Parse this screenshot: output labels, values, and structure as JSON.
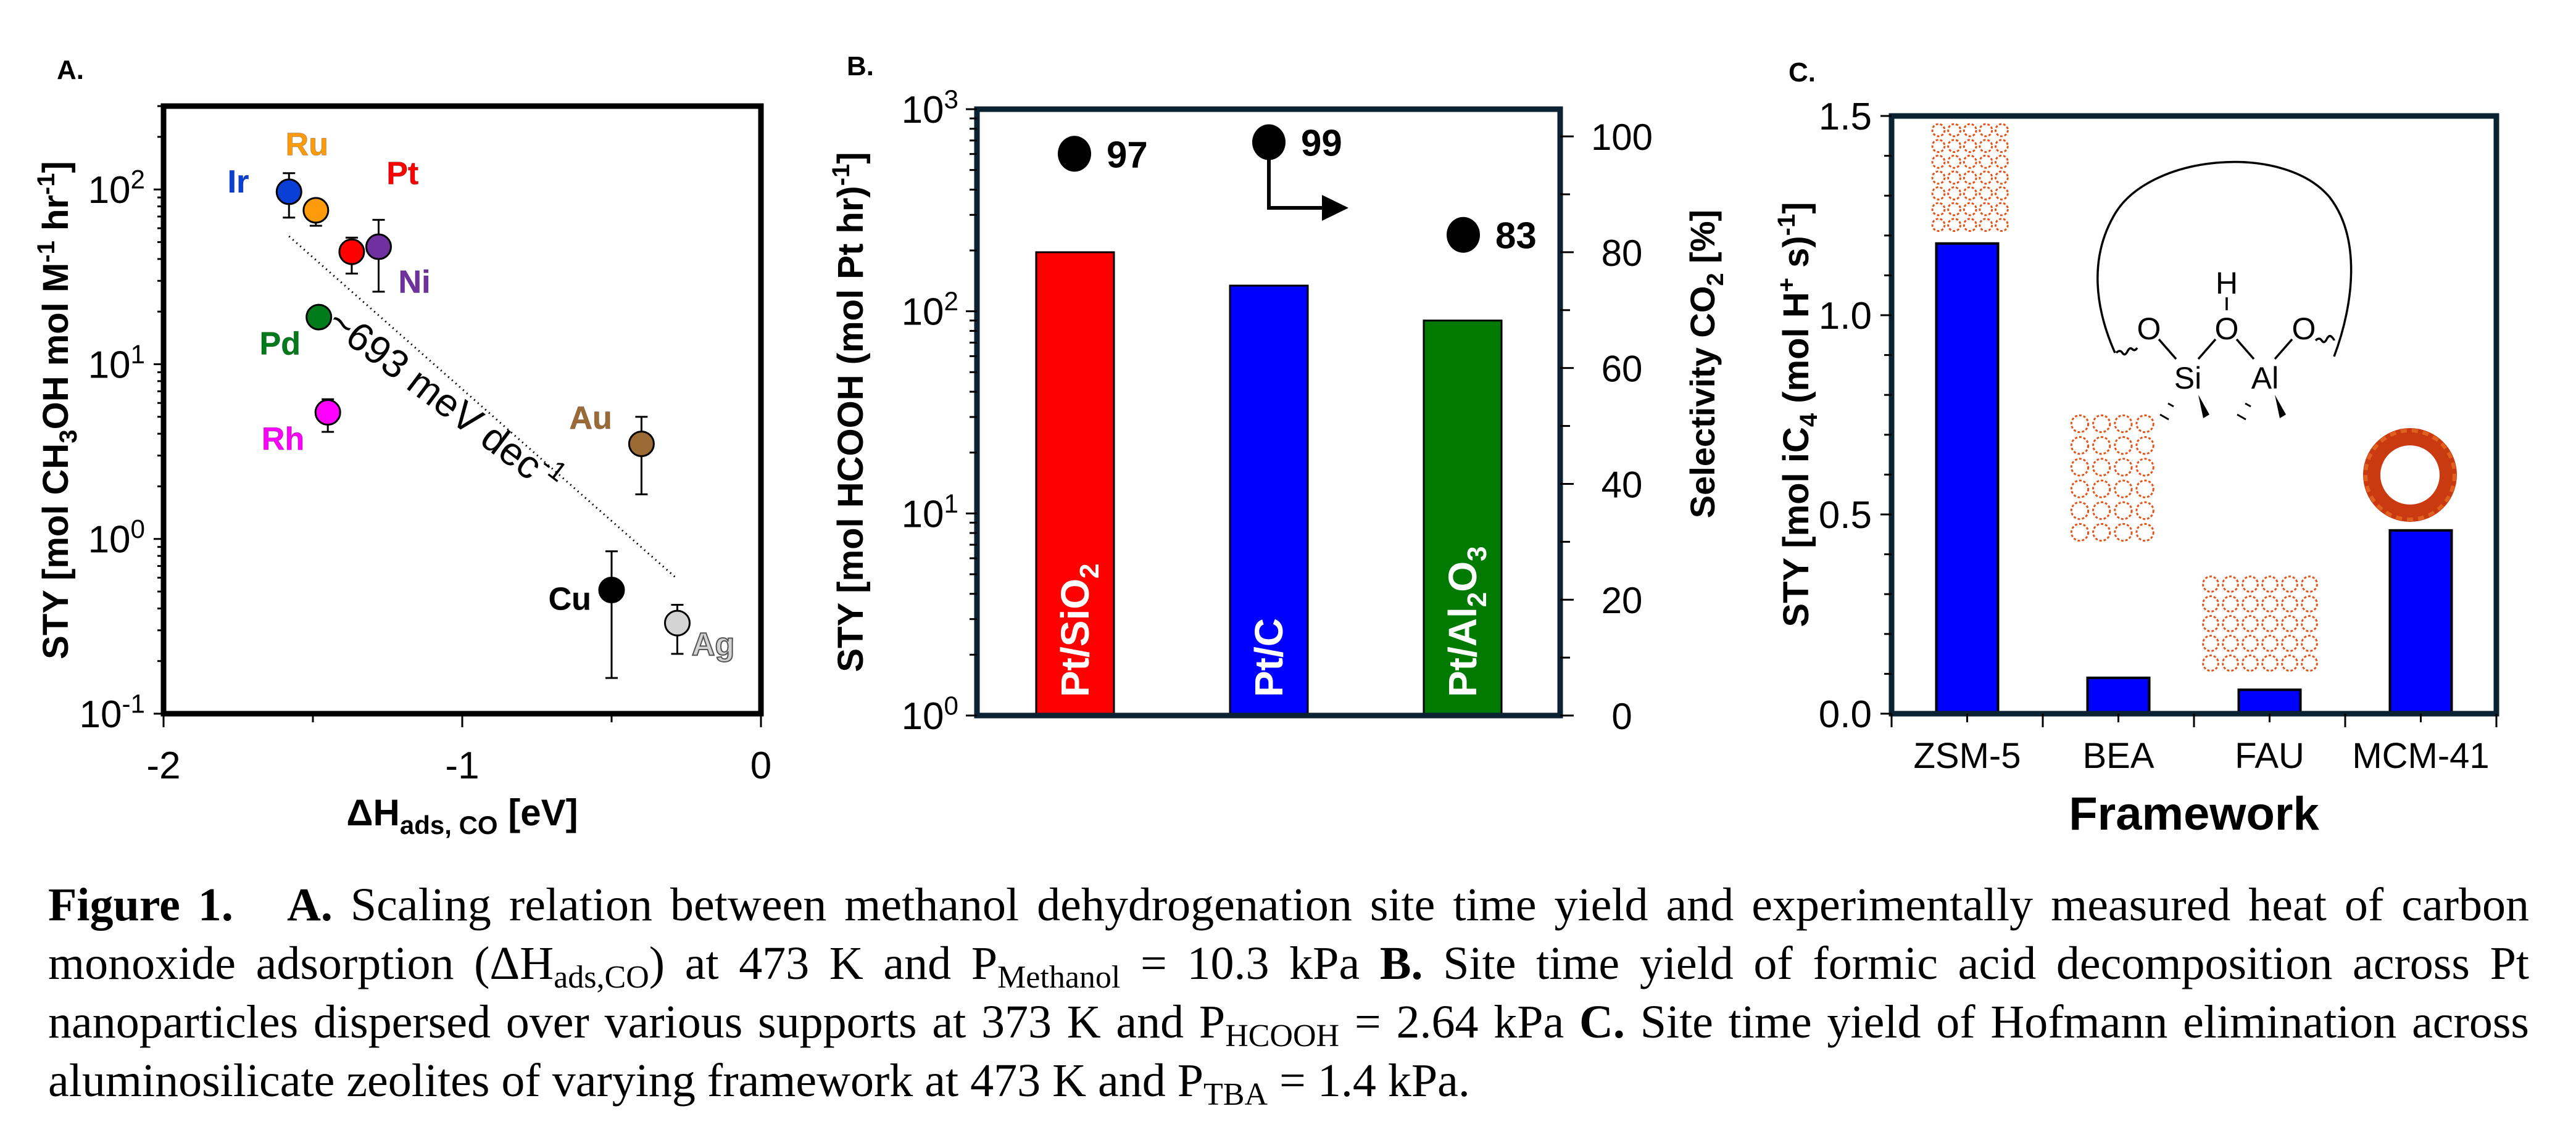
{
  "chart_data": [
    {
      "panel": "A.",
      "type": "scatter",
      "xlabel": "ΔH",
      "xlabel_sub": "ads, CO",
      "xlabel_unit": " [eV]",
      "ylabel_parts": [
        "STY [mol CH",
        "3",
        "OH mol M",
        "-1",
        " hr",
        "-1",
        "]"
      ],
      "xlim": [
        -2,
        0
      ],
      "ylim": [
        0.1,
        300
      ],
      "yscale": "log",
      "xticks": [
        {
          "value": -2,
          "label": "-2"
        },
        {
          "value": -1,
          "label": "-1"
        },
        {
          "value": 0,
          "label": "0"
        }
      ],
      "xminor": [
        -1.5,
        -0.5
      ],
      "yticks": [
        {
          "value": 100,
          "base": "10",
          "exp": "2"
        },
        {
          "value": 10,
          "base": "10",
          "exp": "1"
        },
        {
          "value": 1,
          "base": "10",
          "exp": "0"
        },
        {
          "value": 0.1,
          "base": "10",
          "exp": "-1"
        }
      ],
      "points": [
        {
          "label": "Ir",
          "x": -1.58,
          "y": 97,
          "err_low": 69,
          "err_high": 124,
          "color": "#0a3fd6",
          "label_dx": -0.17,
          "label_dy": 0.06
        },
        {
          "label": "Ru",
          "x": -1.49,
          "y": 76,
          "err_low": 62,
          "err_high": 76,
          "color": "#ff9a0a",
          "label_dx": -0.03,
          "label_dy": 0.38
        },
        {
          "label": "Pt",
          "x": -1.37,
          "y": 44,
          "err_low": 33,
          "err_high": 53,
          "color": "#ff0000",
          "label_dx": 0.17,
          "label_dy": 0.45
        },
        {
          "label": "Ni",
          "x": -1.28,
          "y": 47,
          "err_low": 26,
          "err_high": 67,
          "color": "#7030a0",
          "label_dx": 0.12,
          "label_dy": -0.2
        },
        {
          "label": "Pd",
          "x": -1.48,
          "y": 18.6,
          "err_low": 18.6,
          "err_high": 18.6,
          "color": "#007a1a",
          "label_dx": -0.13,
          "label_dy": -0.15
        },
        {
          "label": "Rh",
          "x": -1.45,
          "y": 5.3,
          "err_low": 4.1,
          "err_high": 6.3,
          "color": "#ff00ff",
          "label_dx": -0.15,
          "label_dy": -0.15
        },
        {
          "label": "Au",
          "x": -0.4,
          "y": 3.5,
          "err_low": 1.8,
          "err_high": 5.0,
          "color": "#9b6a35",
          "label_dx": -0.17,
          "label_dy": 0.15
        },
        {
          "label": "Cu",
          "x": -0.5,
          "y": 0.51,
          "err_low": 0.16,
          "err_high": 0.85,
          "color": "#000000",
          "label_dx": -0.14,
          "label_dy": -0.05
        },
        {
          "label": "Ag",
          "x": -0.28,
          "y": 0.33,
          "err_low": 0.22,
          "err_high": 0.42,
          "color": "#d4d4d4",
          "label_dx": 0.12,
          "label_dy": -0.12
        }
      ],
      "trendline": {
        "x": [
          -1.58,
          -0.28
        ],
        "y": [
          54,
          0.59
        ],
        "style": "dotted"
      },
      "annotation": {
        "text": "~693 meV dec",
        "sup": "-1",
        "x": -1.15,
        "y": 3.2,
        "rotation_deg": 37
      }
    },
    {
      "panel": "B.",
      "type": "bar",
      "categories": [
        "Pt/SiO2",
        "Pt/C",
        "Pt/Al2O3"
      ],
      "category_labels": [
        {
          "parts": [
            "Pt/SiO",
            "2",
            ""
          ]
        },
        {
          "parts": [
            "Pt/C",
            "",
            ""
          ]
        },
        {
          "parts": [
            "Pt/Al",
            "2",
            "O",
            "3"
          ]
        }
      ],
      "values": [
        196,
        134,
        90
      ],
      "bar_colors": [
        "#ff0000",
        "#0000ff",
        "#007a00"
      ],
      "yscale": "log",
      "ylim": [
        1,
        1000
      ],
      "ylabel_parts": [
        "STY [mol HCOOH (mol Pt hr)",
        "-1",
        "]"
      ],
      "yticks": [
        {
          "value": 1,
          "base": "10",
          "exp": "0"
        },
        {
          "value": 10,
          "base": "10",
          "exp": "1"
        },
        {
          "value": 100,
          "base": "10",
          "exp": "2"
        },
        {
          "value": 1000,
          "base": "10",
          "exp": "3"
        }
      ],
      "secondary_axis": {
        "label_parts": [
          "Selectivity CO",
          "2",
          " [%]"
        ],
        "ylim": [
          0,
          104.7
        ],
        "ticks": [
          0,
          20,
          40,
          60,
          80,
          100
        ],
        "minor": [
          10,
          30,
          50,
          70,
          90
        ]
      },
      "selectivity": [
        {
          "value": 97,
          "label": "97"
        },
        {
          "value": 99,
          "label": "99"
        },
        {
          "value": 83,
          "label": "83"
        }
      ],
      "arrow_note": "right-axis"
    },
    {
      "panel": "C.",
      "type": "bar",
      "categories": [
        "ZSM-5",
        "BEA",
        "FAU",
        "MCM-41"
      ],
      "values": [
        1.18,
        0.09,
        0.06,
        0.46
      ],
      "bar_color": "#0000ff",
      "ylim": [
        0,
        1.5
      ],
      "yticks": [
        {
          "value": 0.0,
          "label": "0.0"
        },
        {
          "value": 0.5,
          "label": "0.5"
        },
        {
          "value": 1.0,
          "label": "1.0"
        },
        {
          "value": 1.5,
          "label": "1.5"
        }
      ],
      "yminor": [
        0.1,
        0.2,
        0.3,
        0.4,
        0.6,
        0.7,
        0.8,
        0.9,
        1.1,
        1.2,
        1.3,
        1.4
      ],
      "xlabel": "Framework",
      "ylabel_parts": [
        "STY [mol iC",
        "4",
        " (mol H",
        "+",
        " s)",
        "-1",
        "]"
      ],
      "inset": {
        "atoms": [
          "H",
          "O",
          "O",
          "O",
          "Si",
          "Al"
        ],
        "description": "Brønsted acid site: Si–O(H)–Al bridging hydroxyl within zeolite pore"
      },
      "structure_images": [
        "ZSM-5 framework",
        "BEA framework",
        "FAU framework",
        "MCM-41 framework"
      ]
    }
  ],
  "caption": {
    "fig_label": "Figure 1.",
    "a_label": "A.",
    "a_text_1": " Scaling relation between methanol dehydrogenation site time yield and experimentally measured heat of carbon monoxide adsorption (ΔH",
    "a_sub_1": "ads,CO",
    "a_text_2": ") at 473 K and P",
    "a_sub_2": "Methanol",
    "a_text_3": " = 10.3 kPa ",
    "b_label": "B.",
    "b_text_1": " Site time yield of formic acid decomposition across Pt nanoparticles dispersed over various supports at 373 K and P",
    "b_sub_1": "HCOOH",
    "b_text_2": " = 2.64 kPa ",
    "c_label": "C.",
    "c_text_1": " Site time yield of Hofmann elimination across aluminosilicate zeolites of varying framework at 473 K and P",
    "c_sub_1": "TBA",
    "c_text_2": " = 1.4 kPa."
  }
}
